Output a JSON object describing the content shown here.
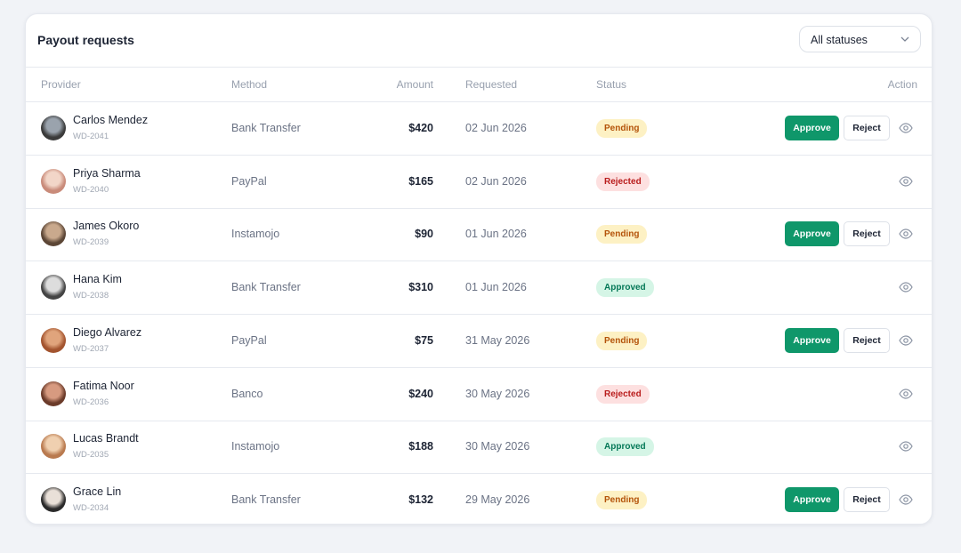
{
  "header": {
    "title": "Payout requests",
    "filter": "All statuses"
  },
  "table": {
    "columns": [
      "Provider",
      "Method",
      "Amount",
      "Requested",
      "Status",
      "Action"
    ],
    "rows": [
      {
        "name": "Carlos Mendez",
        "id": "WD-2041",
        "method": "Bank Transfer",
        "amount": "$420",
        "requested": "02 Jun 2026",
        "status": {
          "label": "Pending",
          "color": "#b45309",
          "background": "#fdf1c4"
        },
        "actions": [
          "Approve",
          "Reject"
        ]
      },
      {
        "name": "Priya Sharma",
        "id": "WD-2040",
        "method": "PayPal",
        "amount": "$165",
        "requested": "02 Jun 2026",
        "status": {
          "label": "Rejected",
          "color": "#b91c1c",
          "background": "#fde0e0"
        },
        "actions": []
      },
      {
        "name": "James Okoro",
        "id": "WD-2039",
        "method": "Instamojo",
        "amount": "$90",
        "requested": "01 Jun 2026",
        "status": {
          "label": "Pending",
          "color": "#b45309",
          "background": "#fdf1c4"
        },
        "actions": [
          "Approve",
          "Reject"
        ]
      },
      {
        "name": "Hana Kim",
        "id": "WD-2038",
        "method": "Bank Transfer",
        "amount": "$310",
        "requested": "01 Jun 2026",
        "status": {
          "label": "Approved",
          "color": "#047857",
          "background": "#d5f5e6"
        },
        "actions": []
      },
      {
        "name": "Diego Alvarez",
        "id": "WD-2037",
        "method": "PayPal",
        "amount": "$75",
        "requested": "31 May 2026",
        "status": {
          "label": "Pending",
          "color": "#b45309",
          "background": "#fdf1c4"
        },
        "actions": [
          "Approve",
          "Reject"
        ]
      },
      {
        "name": "Fatima Noor",
        "id": "WD-2036",
        "method": "Banco",
        "amount": "$240",
        "requested": "30 May 2026",
        "status": {
          "label": "Rejected",
          "color": "#b91c1c",
          "background": "#fde0e0"
        },
        "actions": []
      },
      {
        "name": "Lucas Brandt",
        "id": "WD-2035",
        "method": "Instamojo",
        "amount": "$188",
        "requested": "30 May 2026",
        "status": {
          "label": "Approved",
          "color": "#047857",
          "background": "#d5f5e6"
        },
        "actions": []
      },
      {
        "name": "Grace Lin",
        "id": "WD-2034",
        "method": "Bank Transfer",
        "amount": "$132",
        "requested": "29 May 2026",
        "status": {
          "label": "Pending",
          "color": "#b45309",
          "background": "#fdf1c4"
        },
        "actions": [
          "Approve",
          "Reject"
        ]
      }
    ]
  }
}
